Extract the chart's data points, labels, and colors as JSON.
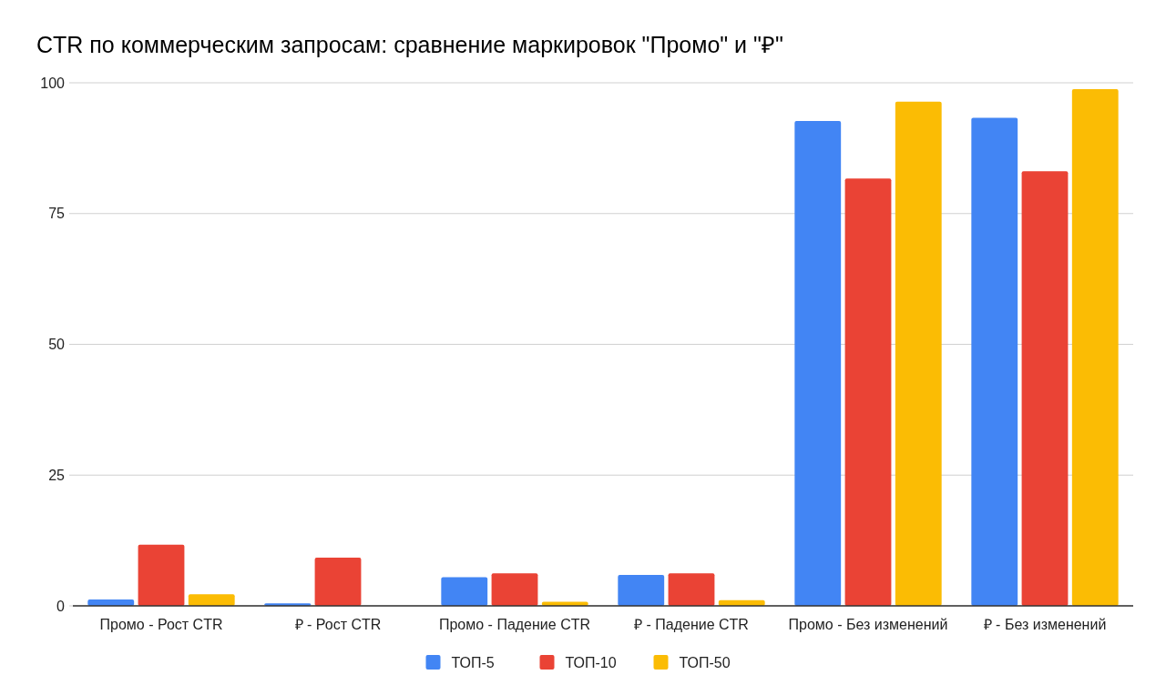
{
  "chart_data": {
    "type": "bar",
    "title": "CTR по коммерческим запросам: сравнение маркировок \"Промо\" и \"₽\"",
    "categories": [
      "Промо - Рост CTR",
      "₽ - Рост CTR",
      "Промо - Падение CTR",
      "₽ - Падение CTR",
      "Промо - Без изменений",
      "₽ - Без изменений"
    ],
    "series": [
      {
        "name": "ТОП-5",
        "color": "#4285f4",
        "values": [
          1.2,
          0.5,
          5.5,
          5.9,
          92.7,
          93.3
        ]
      },
      {
        "name": "ТОП-10",
        "color": "#ea4335",
        "values": [
          11.7,
          9.2,
          6.2,
          6.2,
          81.7,
          83.1
        ]
      },
      {
        "name": "ТОП-50",
        "color": "#fbbc04",
        "values": [
          2.2,
          0,
          0.8,
          1.1,
          96.4,
          98.8
        ]
      }
    ],
    "ylim": [
      0,
      100
    ],
    "yticks": [
      0,
      25,
      50,
      75,
      100
    ],
    "grid": "y",
    "legend": "bottom"
  }
}
